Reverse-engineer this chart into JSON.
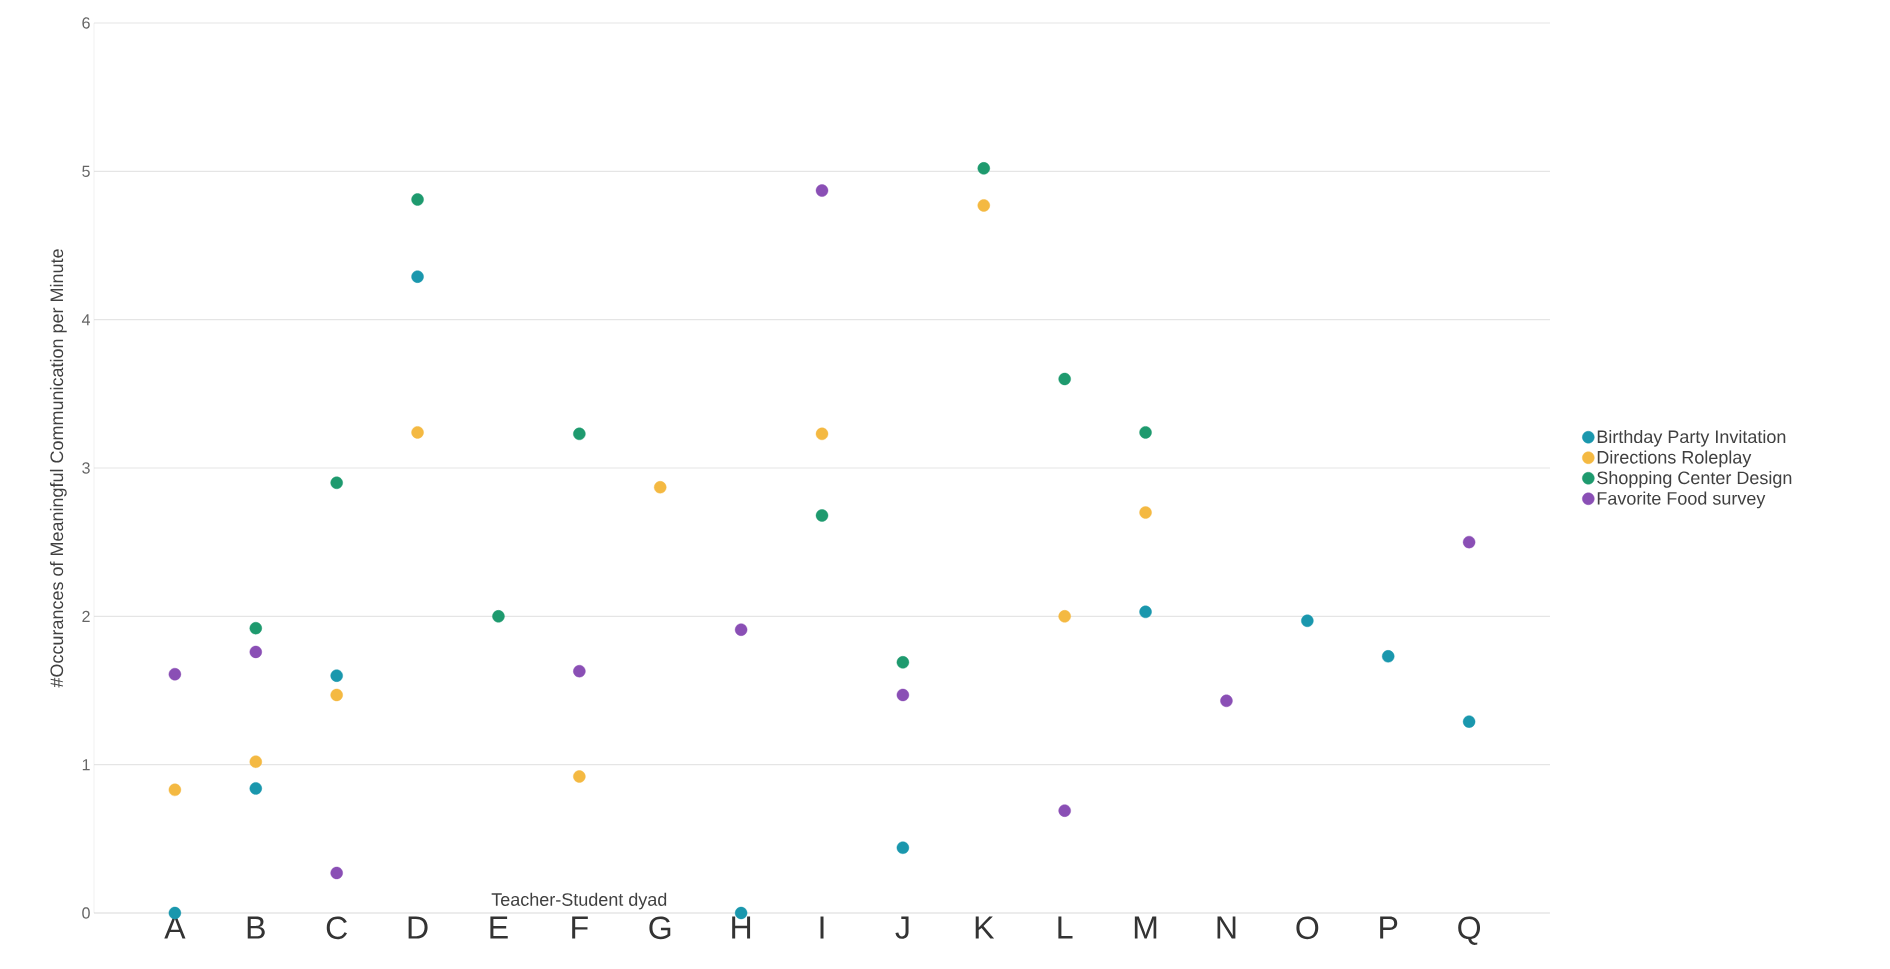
{
  "chart_data": {
    "type": "scatter",
    "xlabel": "Teacher-Student dyad",
    "ylabel": "#Occurances of Meaningful Communication per Minute",
    "categories": [
      "A",
      "B",
      "C",
      "D",
      "E",
      "F",
      "G",
      "H",
      "I",
      "J",
      "K",
      "L",
      "M",
      "N",
      "O",
      "P",
      "Q"
    ],
    "ylim": [
      0,
      6
    ],
    "yticks": [
      0,
      1,
      2,
      3,
      4,
      5,
      6
    ],
    "grid": "y",
    "legend": "right",
    "marker": "circle",
    "series": [
      {
        "name": "Birthday Party Invitation",
        "color": "#1a97ad",
        "values": [
          0,
          0.84,
          1.6,
          4.29,
          null,
          null,
          null,
          0,
          null,
          0.44,
          null,
          null,
          2.03,
          null,
          1.97,
          1.73,
          1.29
        ]
      },
      {
        "name": "Directions Roleplay",
        "color": "#f4b942",
        "values": [
          0.83,
          1.02,
          1.47,
          3.24,
          null,
          0.92,
          2.87,
          null,
          3.23,
          null,
          4.77,
          2.0,
          2.7,
          null,
          null,
          null,
          null
        ]
      },
      {
        "name": "Shopping Center Design",
        "color": "#1e9a6e",
        "values": [
          null,
          1.92,
          2.9,
          4.81,
          2.0,
          3.23,
          null,
          null,
          2.68,
          1.69,
          5.02,
          3.6,
          3.24,
          null,
          null,
          null,
          null
        ]
      },
      {
        "name": "Favorite Food survey",
        "color": "#8a4fb5",
        "values": [
          1.61,
          1.76,
          0.27,
          null,
          null,
          1.63,
          null,
          1.91,
          4.87,
          1.47,
          null,
          0.69,
          null,
          1.43,
          null,
          null,
          2.5
        ]
      }
    ]
  }
}
